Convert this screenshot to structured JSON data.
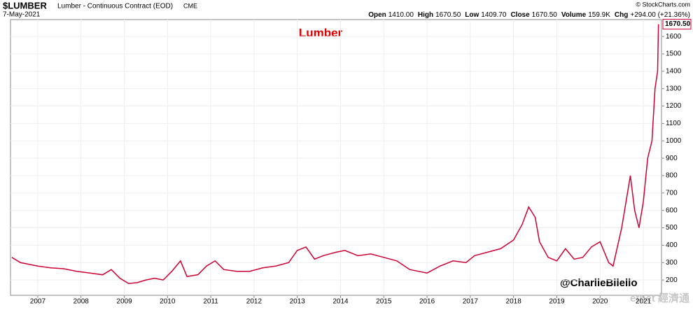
{
  "chart_data": {
    "type": "line",
    "symbol": "$LUMBER",
    "description": "Lumber - Continuous Contract (EOD)",
    "exchange": "CME",
    "date": "7-May-2021",
    "source": "© StockCharts.com",
    "quote": [
      {
        "label": "Open",
        "value": "1410.00"
      },
      {
        "label": "High",
        "value": "1670.50"
      },
      {
        "label": "Low",
        "value": "1409.70"
      },
      {
        "label": "Close",
        "value": "1670.50"
      },
      {
        "label": "Volume",
        "value": "159.9K"
      },
      {
        "label": "Chg",
        "value": "+294.00 (+21.36%)"
      }
    ],
    "title": "Lumber",
    "annotation": "@CharlieBilello",
    "watermark": "etnet 經濟通",
    "last_value_label": "1670.50",
    "x": [
      2006.4,
      2006.6,
      2006.8,
      2007.0,
      2007.3,
      2007.6,
      2007.9,
      2008.2,
      2008.5,
      2008.7,
      2008.9,
      2009.1,
      2009.3,
      2009.5,
      2009.7,
      2009.9,
      2010.1,
      2010.3,
      2010.45,
      2010.7,
      2010.9,
      2011.1,
      2011.3,
      2011.6,
      2011.9,
      2012.2,
      2012.5,
      2012.8,
      2013.0,
      2013.2,
      2013.4,
      2013.6,
      2013.9,
      2014.1,
      2014.4,
      2014.7,
      2015.0,
      2015.3,
      2015.6,
      2015.8,
      2016.0,
      2016.3,
      2016.6,
      2016.9,
      2017.1,
      2017.4,
      2017.7,
      2018.0,
      2018.2,
      2018.35,
      2018.5,
      2018.6,
      2018.8,
      2019.0,
      2019.2,
      2019.4,
      2019.6,
      2019.8,
      2020.0,
      2020.2,
      2020.3,
      2020.5,
      2020.7,
      2020.8,
      2020.9,
      2021.0,
      2021.1,
      2021.2,
      2021.27,
      2021.33,
      2021.35
    ],
    "series": [
      {
        "name": "Lumber",
        "color": "#cc0033",
        "values": [
          330,
          300,
          290,
          280,
          270,
          265,
          250,
          240,
          230,
          260,
          210,
          180,
          185,
          200,
          210,
          200,
          250,
          310,
          220,
          230,
          280,
          310,
          260,
          250,
          250,
          270,
          280,
          300,
          370,
          390,
          320,
          340,
          360,
          370,
          340,
          350,
          330,
          310,
          260,
          250,
          240,
          280,
          310,
          300,
          340,
          360,
          380,
          430,
          520,
          620,
          560,
          420,
          330,
          310,
          380,
          320,
          330,
          390,
          420,
          300,
          280,
          500,
          800,
          600,
          500,
          650,
          900,
          1000,
          1300,
          1400,
          1670.5
        ]
      }
    ],
    "xlim": [
      2006.37,
      2021.42
    ],
    "xticks": [
      2007,
      2008,
      2009,
      2010,
      2011,
      2012,
      2013,
      2014,
      2015,
      2016,
      2017,
      2018,
      2019,
      2020,
      2021
    ],
    "ylim": [
      112,
      1697
    ],
    "yticks": [
      200,
      300,
      400,
      500,
      600,
      700,
      800,
      900,
      1000,
      1100,
      1200,
      1300,
      1400,
      1500,
      1600
    ],
    "grid": true
  }
}
